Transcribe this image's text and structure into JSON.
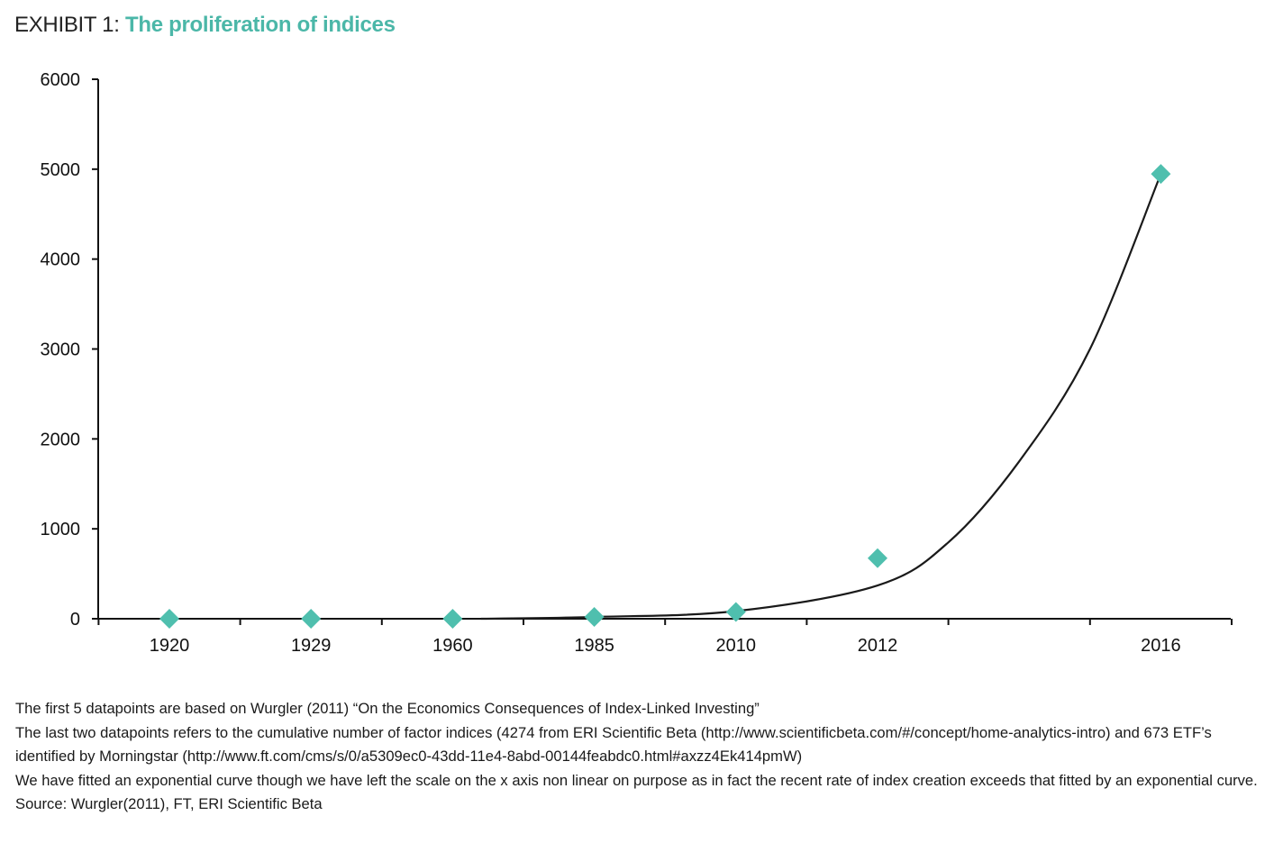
{
  "header": {
    "prefix": "EXHIBIT 1: ",
    "title": "The proliferation of indices"
  },
  "colors": {
    "accent": "#4bb7a8",
    "marker": "#4fbfae",
    "curve": "#1a1a1a"
  },
  "chart_data": {
    "type": "scatter",
    "title": "The proliferation of indices",
    "xlabel": "",
    "ylabel": "",
    "categories": [
      "1920",
      "1929",
      "1960",
      "1985",
      "2010",
      "2012",
      "2016"
    ],
    "category_positions": [
      0,
      1,
      2,
      3,
      4,
      5,
      7
    ],
    "values": [
      0,
      0,
      0,
      20,
      75,
      673,
      4947
    ],
    "ylim": [
      0,
      6000
    ],
    "yticks": [
      "0",
      "1000",
      "2000",
      "3000",
      "4000",
      "5000",
      "6000"
    ],
    "ytick_values": [
      0,
      1000,
      2000,
      3000,
      4000,
      5000,
      6000
    ],
    "grid": false,
    "trendline": {
      "type": "exponential",
      "label": "fitted exponential curve",
      "points": [
        [
          2.2,
          0
        ],
        [
          3,
          20
        ],
        [
          4,
          85
        ],
        [
          5,
          370
        ],
        [
          5.5,
          850
        ],
        [
          6,
          1750
        ],
        [
          6.5,
          3000
        ],
        [
          7,
          4947
        ]
      ]
    }
  },
  "notes": {
    "line1": "The first 5 datapoints  are based on Wurgler (2011) “On the Economics Consequences of Index-Linked Investing”",
    "line2": "The last two datapoints refers to the cumulative number of factor indices (4274 from ERI Scientific Beta (http://www.scientificbeta.com/#/concept/home-analytics-intro)  and 673  ETF’s identified by Morningstar (http://www.ft.com/cms/s/0/a5309ec0-43dd-11e4-8abd-00144feabdc0.html#axzz4Ek414pmW)",
    "line3": "We have fitted an exponential curve though we have left the scale on the x axis non linear on purpose as in fact the recent rate of index creation exceeds that fitted by an exponential curve. Source: Wurgler(2011), FT, ERI Scientific Beta"
  }
}
